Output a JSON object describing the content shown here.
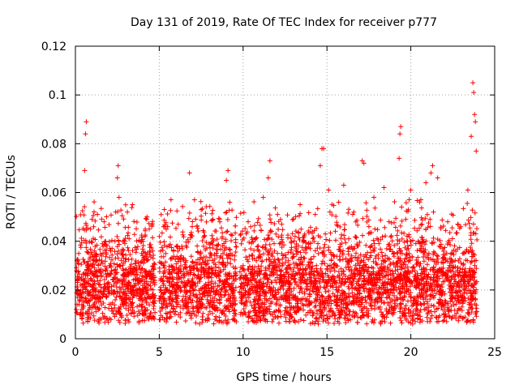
{
  "chart_data": {
    "type": "scatter",
    "title": "Day 131 of 2019, Rate Of TEC Index for receiver p777",
    "xlabel": "GPS time / hours",
    "ylabel": "ROTI / TECUs",
    "xlim": [
      0,
      25
    ],
    "ylim": [
      0,
      0.12
    ],
    "xticks": [
      0,
      5,
      10,
      15,
      20,
      25
    ],
    "xtick_labels": [
      "0",
      "5",
      "10",
      "15",
      "20",
      "25"
    ],
    "yticks": [
      0,
      0.02,
      0.04,
      0.06,
      0.08,
      0.1,
      0.12
    ],
    "ytick_labels": [
      "0",
      "0.02",
      "0.04",
      "0.06",
      "0.08",
      "0.1",
      "0.12"
    ],
    "grid": true,
    "marker": "plus",
    "color": "#ff0000",
    "observation_gaps_hours": [
      [
        4.75,
        5.0
      ],
      [
        9.6,
        9.8
      ]
    ],
    "series": [
      {
        "name": "ROTI",
        "x": [
          0.1,
          0.2,
          0.4,
          0.55,
          0.6,
          0.65,
          0.7,
          0.9,
          1.2,
          1.5,
          1.8,
          2.1,
          2.4,
          2.5,
          2.55,
          2.6,
          2.9,
          3.2,
          3.4,
          3.5,
          3.8,
          4.1,
          4.4,
          4.6,
          5.1,
          5.3,
          5.5,
          5.7,
          6.0,
          6.3,
          6.6,
          6.8,
          6.9,
          7.1,
          7.5,
          7.9,
          8.2,
          8.5,
          8.8,
          9.0,
          9.1,
          9.2,
          9.4,
          10.0,
          10.3,
          10.6,
          10.9,
          11.2,
          11.5,
          11.6,
          11.7,
          11.9,
          12.3,
          12.7,
          13.1,
          13.4,
          13.7,
          14.0,
          14.3,
          14.6,
          14.7,
          14.8,
          14.9,
          15.1,
          15.4,
          15.7,
          16.0,
          16.3,
          16.6,
          16.9,
          17.1,
          17.2,
          17.5,
          17.8,
          18.1,
          18.4,
          18.7,
          19.0,
          19.3,
          19.35,
          19.4,
          19.45,
          19.7,
          20.0,
          20.3,
          20.6,
          20.9,
          21.2,
          21.3,
          21.35,
          21.6,
          21.9,
          22.2,
          22.5,
          22.8,
          23.1,
          23.4,
          23.6,
          23.7,
          23.75,
          23.8,
          23.85,
          23.9
        ],
        "y": [
          0.014,
          0.035,
          0.022,
          0.069,
          0.084,
          0.089,
          0.031,
          0.045,
          0.018,
          0.027,
          0.021,
          0.036,
          0.052,
          0.066,
          0.071,
          0.058,
          0.024,
          0.041,
          0.055,
          0.029,
          0.019,
          0.033,
          0.045,
          0.015,
          0.031,
          0.053,
          0.046,
          0.057,
          0.022,
          0.034,
          0.019,
          0.068,
          0.028,
          0.057,
          0.016,
          0.032,
          0.049,
          0.027,
          0.035,
          0.065,
          0.069,
          0.056,
          0.021,
          0.025,
          0.048,
          0.019,
          0.038,
          0.058,
          0.066,
          0.073,
          0.044,
          0.027,
          0.047,
          0.032,
          0.042,
          0.055,
          0.028,
          0.037,
          0.051,
          0.071,
          0.078,
          0.078,
          0.043,
          0.061,
          0.034,
          0.056,
          0.063,
          0.041,
          0.052,
          0.027,
          0.073,
          0.072,
          0.046,
          0.058,
          0.039,
          0.062,
          0.048,
          0.035,
          0.074,
          0.084,
          0.087,
          0.054,
          0.049,
          0.061,
          0.039,
          0.057,
          0.064,
          0.068,
          0.071,
          0.052,
          0.066,
          0.037,
          0.048,
          0.029,
          0.047,
          0.035,
          0.061,
          0.083,
          0.105,
          0.101,
          0.092,
          0.089,
          0.077
        ]
      }
    ]
  }
}
